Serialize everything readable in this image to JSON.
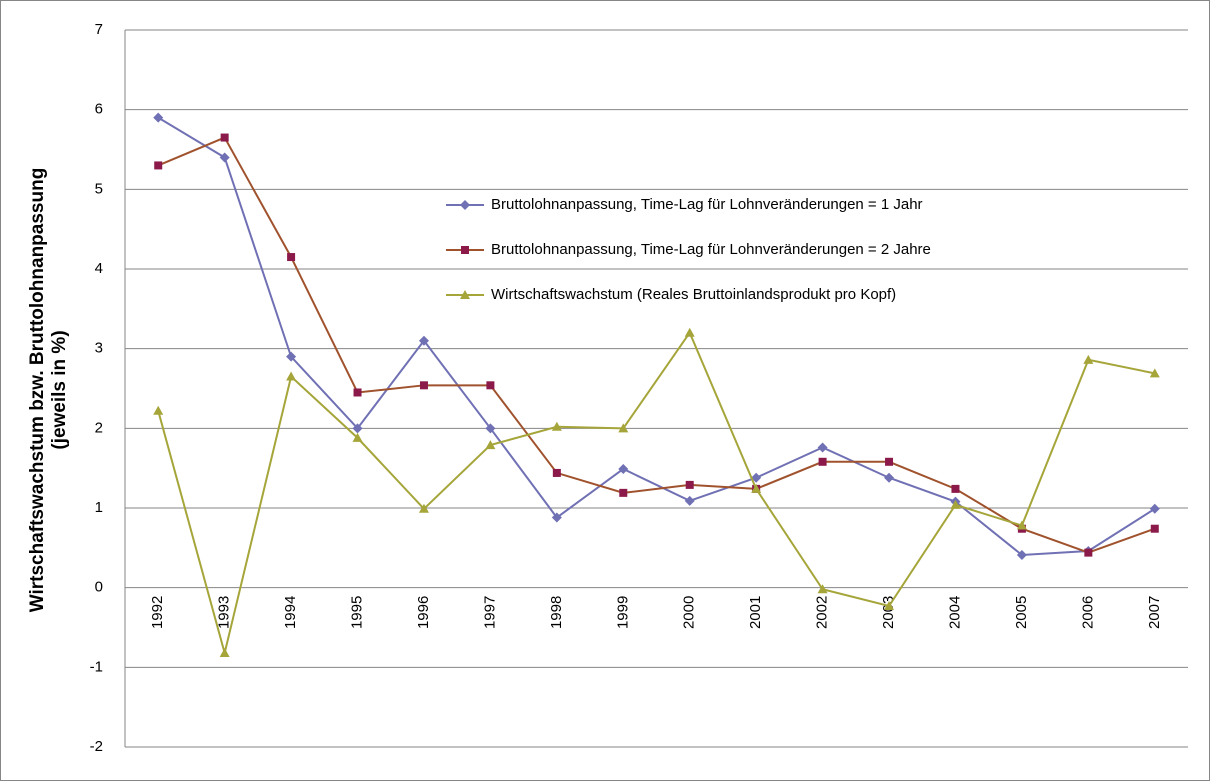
{
  "chart_data": {
    "type": "line",
    "y_label": [
      "Wirtschaftswachstum bzw. Bruttolohnanpassung",
      "(jeweils in %)"
    ],
    "categories": [
      "1992",
      "1993",
      "1994",
      "1995",
      "1996",
      "1997",
      "1998",
      "1999",
      "2000",
      "2001",
      "2002",
      "2003",
      "2004",
      "2005",
      "2006",
      "2007"
    ],
    "series": [
      {
        "name": "Bruttolohnanpassung, Time-Lag für Lohnveränderungen = 1 Jahr",
        "color": "#7070b4",
        "marker": "diamond",
        "values": [
          5.9,
          5.4,
          2.9,
          2.0,
          3.1,
          2.0,
          0.88,
          1.49,
          1.09,
          1.38,
          1.76,
          1.38,
          1.08,
          0.41,
          0.46,
          0.99
        ]
      },
      {
        "name": "Bruttolohnanpassung, Time-Lag für Lohnveränderungen = 2 Jahre",
        "color": "#a0522d",
        "marker_color": "#8b1a4a",
        "marker": "square",
        "values": [
          5.3,
          5.65,
          4.15,
          2.45,
          2.54,
          2.54,
          1.44,
          1.19,
          1.29,
          1.24,
          1.58,
          1.58,
          1.24,
          0.74,
          0.44,
          0.74
        ]
      },
      {
        "name": "Wirtschaftswachstum (Reales Bruttoinlandsprodukt pro Kopf)",
        "color": "#a5a53a",
        "marker": "triangle",
        "values": [
          2.22,
          -0.82,
          2.65,
          1.88,
          0.99,
          1.79,
          2.02,
          2.0,
          3.2,
          1.24,
          -0.02,
          -0.23,
          1.04,
          0.78,
          2.86,
          2.69
        ]
      }
    ],
    "ylim": [
      -2,
      7
    ],
    "yticks": [
      -2,
      -1,
      0,
      1,
      2,
      3,
      4,
      5,
      6,
      7
    ],
    "grid": true
  }
}
